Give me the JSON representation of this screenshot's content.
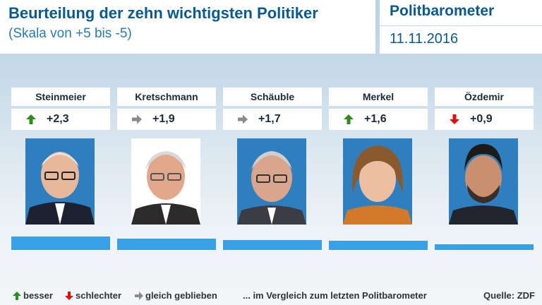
{
  "header": {
    "title": "Beurteilung der zehn wichtigsten Politiker",
    "subtitle": "(Skala von +5 bis -5)",
    "brand": "Politbarometer",
    "date": "11.11.2016"
  },
  "chart_data": {
    "type": "bar",
    "title": "Beurteilung der zehn wichtigsten Politiker",
    "subtitle": "(Skala von +5 bis -5)",
    "ylim": [
      -5,
      5
    ],
    "categories": [
      "Steinmeier",
      "Kretschmann",
      "Schäuble",
      "Merkel",
      "Özdemir"
    ],
    "values": [
      2.3,
      1.9,
      1.7,
      1.6,
      0.9
    ],
    "value_labels": [
      "+2,3",
      "+1,9",
      "+1,7",
      "+1,6",
      "+0,9"
    ],
    "trends": [
      "besser",
      "gleich geblieben",
      "gleich geblieben",
      "besser",
      "schlechter"
    ],
    "bar_color": "#3aa0e6"
  },
  "colors": {
    "up": "#2e8b1e",
    "down": "#e01010",
    "same": "#8a8a8a"
  },
  "legend": {
    "better": "besser",
    "worse": "schlechter",
    "same": "gleich geblieben",
    "note": "... im Vergleich zum letzten Politbarometer",
    "source": "Quelle: ZDF"
  }
}
